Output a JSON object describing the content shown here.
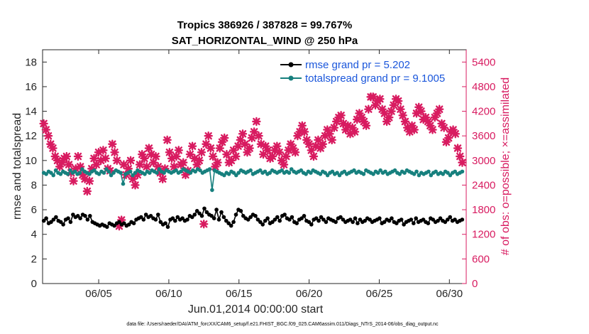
{
  "chart_data": {
    "type": "line",
    "title_line1": "Tropics 386926 / 387828 = 99.767%",
    "title_line2": "SAT_HORIZONTAL_WIND @ 250 hPa",
    "xlabel": "Jun.01,2014 00:00:00 start",
    "ylabel_left": "rmse and totalspread",
    "ylabel_right": "# of obs: o=possible; ×=assimilated",
    "footnote": "data file: /Users/raeder/DAI/ATM_forcXX/CAM6_setup/f.e21.FHIST_BGC.f09_025.CAM6assim.011/Diags_NTrS_2014-06/obs_diag_output.nc",
    "xlim": [
      1,
      31.2
    ],
    "ylim_left": [
      0,
      19
    ],
    "ylim_right": [
      0,
      5700
    ],
    "xticks": [
      5,
      10,
      15,
      20,
      25,
      30
    ],
    "xtick_labels": [
      "06/05",
      "06/10",
      "06/15",
      "06/20",
      "06/25",
      "06/30"
    ],
    "yticks_left": [
      0,
      2,
      4,
      6,
      8,
      10,
      12,
      14,
      16,
      18
    ],
    "yticks_right": [
      0,
      600,
      1200,
      1800,
      2400,
      3000,
      3600,
      4200,
      4800,
      5400
    ],
    "legend_position": "top-right",
    "colors": {
      "rmse": "#000000",
      "spread": "#17807e",
      "obs": "#d81b60",
      "legend_text": "#1a56db",
      "right_axis": "#d81b60"
    },
    "series": [
      {
        "name": "rmse grand pr = 5.202",
        "key": "rmse",
        "values": [
          5.1,
          5.3,
          4.9,
          5.0,
          5.2,
          5.4,
          5.1,
          5.0,
          4.8,
          5.2,
          5.3,
          5.0,
          5.6,
          5.4,
          5.5,
          5.3,
          5.6,
          5.5,
          5.2,
          5.5,
          5.0,
          4.9,
          4.8,
          4.7,
          4.8,
          4.7,
          4.6,
          4.9,
          4.8,
          4.7,
          4.9,
          5.0,
          4.8,
          4.9,
          4.7,
          4.8,
          5.0,
          4.9,
          5.2,
          5.3,
          5.4,
          5.2,
          5.6,
          5.4,
          5.5,
          5.3,
          5.2,
          5.6,
          5.0,
          4.8,
          4.9,
          4.6,
          5.2,
          5.3,
          5.1,
          5.4,
          5.2,
          5.3,
          5.1,
          5.2,
          5.5,
          5.4,
          5.6,
          5.9,
          5.7,
          5.5,
          6.1,
          5.8,
          5.6,
          5.5,
          5.3,
          6.0,
          5.2,
          5.8,
          5.4,
          5.1,
          4.9,
          4.7,
          5.0,
          5.6,
          6.0,
          5.9,
          5.5,
          5.3,
          5.2,
          5.4,
          5.6,
          5.5,
          5.2,
          5.0,
          4.8,
          5.1,
          5.3,
          4.9,
          5.0,
          5.2,
          5.4,
          5.1,
          5.5,
          5.6,
          5.3,
          5.2,
          5.4,
          5.0,
          4.9,
          5.2,
          5.3,
          5.5,
          5.1,
          5.0,
          4.8,
          5.2,
          5.3,
          5.1,
          5.4,
          5.2,
          5.0,
          5.3,
          5.2,
          5.1,
          5.0,
          5.3,
          5.4,
          5.2,
          5.0,
          5.1,
          5.2,
          5.0,
          5.3,
          4.9,
          5.2,
          5.0,
          5.1,
          5.3,
          5.2,
          5.0,
          5.1,
          5.2,
          5.3,
          4.9,
          5.0,
          5.2,
          5.1,
          5.3,
          5.0,
          4.9,
          5.1,
          5.2,
          4.8,
          5.0,
          5.1,
          5.2,
          4.9,
          5.3,
          5.0,
          5.1,
          5.2,
          5.0,
          4.9,
          5.3,
          5.2,
          5.0,
          5.1,
          5.3,
          5.1,
          5.0,
          5.2,
          5.4,
          5.1,
          5.2,
          5.0,
          5.1,
          5.2
        ]
      },
      {
        "name": "totalspread grand pr = 9.1005",
        "key": "spread",
        "values": [
          9.0,
          8.9,
          9.1,
          9.0,
          8.8,
          9.2,
          9.0,
          8.9,
          9.1,
          9.0,
          8.9,
          9.2,
          9.0,
          9.1,
          8.9,
          9.0,
          9.3,
          9.1,
          9.0,
          8.9,
          9.1,
          9.2,
          9.0,
          8.9,
          9.1,
          9.0,
          9.3,
          9.1,
          8.8,
          9.0,
          9.2,
          9.1,
          9.0,
          8.1,
          8.9,
          9.0,
          9.1,
          8.8,
          9.0,
          9.2,
          9.1,
          9.0,
          8.9,
          9.1,
          9.0,
          9.2,
          9.1,
          9.0,
          9.3,
          9.1,
          9.0,
          9.2,
          9.1,
          9.0,
          9.1,
          9.2,
          9.0,
          9.1,
          9.3,
          9.2,
          9.1,
          9.0,
          9.2,
          9.1,
          9.3,
          9.2,
          9.0,
          9.1,
          9.2,
          9.3,
          7.6,
          9.2,
          9.1,
          9.0,
          8.9,
          8.8,
          9.0,
          8.9,
          9.1,
          9.0,
          8.8,
          9.0,
          9.2,
          9.1,
          9.0,
          9.1,
          9.2,
          8.9,
          9.0,
          9.1,
          9.2,
          9.0,
          9.1,
          8.9,
          9.0,
          9.2,
          9.1,
          9.0,
          9.1,
          9.2,
          9.0,
          9.1,
          9.0,
          9.3,
          9.1,
          9.0,
          9.1,
          9.2,
          9.0,
          8.9,
          9.1,
          9.0,
          9.2,
          9.1,
          9.0,
          8.9,
          9.1,
          9.0,
          8.8,
          9.0,
          9.1,
          8.9,
          9.0,
          8.8,
          9.0,
          9.1,
          8.9,
          9.0,
          9.1,
          9.2,
          9.0,
          9.1,
          9.0,
          8.9,
          9.2,
          9.1,
          9.0,
          8.9,
          9.1,
          9.0,
          9.2,
          9.0,
          9.1,
          8.9,
          9.0,
          9.1,
          9.2,
          9.0,
          8.9,
          9.1,
          9.0,
          9.2,
          9.1,
          9.0,
          8.9,
          9.1,
          8.8,
          9.0,
          8.9,
          9.0,
          9.1,
          8.8,
          9.0,
          9.1,
          8.9,
          9.0,
          8.9,
          9.1,
          9.0,
          8.8,
          9.0,
          9.1,
          8.9,
          9.0,
          9.1
        ]
      },
      {
        "name": "obs assimilated",
        "key": "obs",
        "axis": "right",
        "values": [
          3900,
          3750,
          3600,
          3400,
          3300,
          3100,
          3000,
          2850,
          2950,
          3050,
          3100,
          2900,
          2700,
          2500,
          2800,
          3100,
          2850,
          2650,
          2550,
          2250,
          2500,
          2800,
          3050,
          2900,
          3200,
          3000,
          3250,
          3050,
          2800,
          2750,
          3400,
          3200,
          3000,
          1400,
          1550,
          2900,
          2650,
          2800,
          3000,
          2550,
          2400,
          2650,
          2900,
          3150,
          3050,
          2850,
          3300,
          3150,
          2950,
          3100,
          2850,
          2700,
          2550,
          2800,
          3500,
          3200,
          3050,
          2850,
          3100,
          3250,
          2900,
          2950,
          2650,
          2750,
          3150,
          3350,
          3050,
          2900,
          3000,
          3200,
          1450,
          3400,
          3600,
          3300,
          3100,
          2850,
          2950,
          3300,
          3450,
          3550,
          3150,
          2950,
          3000,
          3250,
          3100,
          3350,
          3500,
          3650,
          3400,
          3200,
          3300,
          3550,
          3700,
          3950,
          3600,
          3400,
          3150,
          3350,
          3250,
          3050,
          3100,
          3250,
          3350,
          3200,
          3000,
          2900,
          3100,
          3250,
          3400,
          3300,
          3200,
          3600,
          3700,
          3850,
          3700,
          3500,
          3400,
          3250,
          3100,
          3350,
          3500,
          3300,
          3400,
          3600,
          3750,
          3650,
          3500,
          3800,
          3950,
          4050,
          4100,
          3900,
          3750,
          3850,
          3650,
          3800,
          3700,
          4000,
          4150,
          4050,
          3950,
          3850,
          4250,
          4550,
          4550,
          4350,
          4450,
          4500,
          4250,
          4150,
          3950,
          4050,
          4200,
          4350,
          4500,
          4450,
          4250,
          4100,
          3950,
          3800,
          3700,
          3850,
          3750,
          4150,
          4300,
          4200,
          4000,
          4050,
          3950,
          3850,
          3750,
          4050,
          4150,
          4250,
          3900,
          3800,
          3450,
          3550,
          3700,
          3750,
          3650,
          3300,
          3100,
          2950
        ]
      }
    ]
  }
}
